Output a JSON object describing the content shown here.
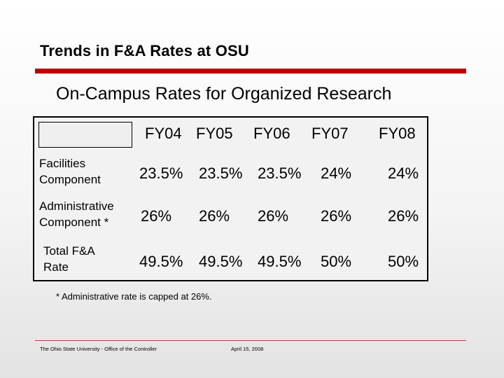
{
  "slide": {
    "title": "Trends in F&A Rates at OSU",
    "subtitle": "On-Campus Rates for Organized Research",
    "footnote": "*  Administrative rate is capped at 26%.",
    "footer_left": "The Ohio State University - Office of the Controller",
    "footer_right": "April 15, 2008",
    "accent_color": "#bb0000"
  },
  "table": {
    "columns": [
      "FY04",
      "FY05",
      "FY06",
      "FY07",
      "FY08"
    ],
    "rows": [
      {
        "label_line1": "Facilities",
        "label_line2": "Component",
        "values": [
          "23.5%",
          "23.5%",
          "23.5%",
          "24%",
          "24%"
        ]
      },
      {
        "label_line1": "Administrative",
        "label_line2": "Component *",
        "values": [
          "26%",
          "26%",
          "26%",
          "26%",
          "26%"
        ]
      },
      {
        "label_line1": "Total F&A",
        "label_line2": "Rate",
        "values": [
          "49.5%",
          "49.5%",
          "49.5%",
          "50%",
          "50%"
        ]
      }
    ]
  }
}
